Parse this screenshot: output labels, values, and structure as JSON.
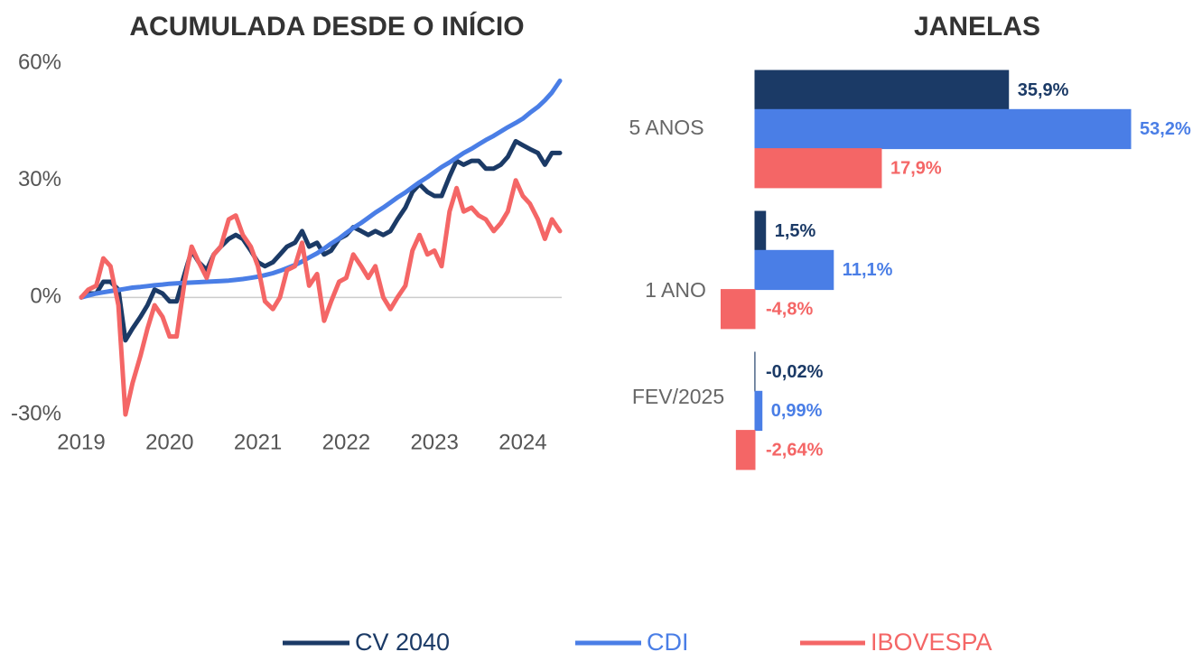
{
  "chart_data": [
    {
      "type": "line",
      "title": "ACUMULADA DESDE O INÍCIO",
      "x": [
        2019,
        2019.08,
        2019.17,
        2019.25,
        2019.33,
        2019.42,
        2019.5,
        2019.58,
        2019.67,
        2019.75,
        2019.83,
        2019.92,
        2020,
        2020.08,
        2020.17,
        2020.25,
        2020.33,
        2020.42,
        2020.5,
        2020.58,
        2020.67,
        2020.75,
        2020.83,
        2020.92,
        2021,
        2021.08,
        2021.17,
        2021.25,
        2021.33,
        2021.42,
        2021.5,
        2021.58,
        2021.67,
        2021.75,
        2021.83,
        2021.92,
        2022,
        2022.08,
        2022.17,
        2022.25,
        2022.33,
        2022.42,
        2022.5,
        2022.58,
        2022.67,
        2022.75,
        2022.83,
        2022.92,
        2023,
        2023.08,
        2023.17,
        2023.25,
        2023.33,
        2023.42,
        2023.5,
        2023.58,
        2023.67,
        2023.75,
        2023.83,
        2023.92,
        2024,
        2024.08,
        2024.17,
        2024.25,
        2024.33,
        2024.42
      ],
      "series": [
        {
          "name": "CV 2040",
          "color": "#1b3a66",
          "values": [
            0,
            1,
            1,
            4,
            4,
            2,
            -11,
            -8,
            -5,
            -2,
            2,
            1,
            -1,
            -1,
            6,
            12,
            9,
            7,
            11,
            13,
            15,
            16,
            15,
            12,
            9,
            8,
            9,
            11,
            13,
            14,
            17,
            13,
            14,
            11,
            12,
            15,
            16,
            18,
            17,
            16,
            17,
            16,
            17,
            20,
            23,
            27,
            29,
            27,
            26,
            26,
            31,
            35,
            34,
            35,
            35,
            33,
            33,
            34,
            36,
            40,
            39,
            38,
            37,
            34,
            37,
            37
          ]
        },
        {
          "name": "CDI",
          "color": "#4a7ee6",
          "values": [
            0,
            0.5,
            1,
            1.3,
            1.6,
            1.9,
            2.2,
            2.5,
            2.7,
            2.9,
            3.1,
            3.3,
            3.5,
            3.6,
            3.7,
            3.8,
            3.9,
            4,
            4.1,
            4.2,
            4.3,
            4.5,
            4.7,
            5,
            5.3,
            5.7,
            6.2,
            6.8,
            7.5,
            8.3,
            9.2,
            10.2,
            11.3,
            12.5,
            13.8,
            15.1,
            16.5,
            17.8,
            19.1,
            20.4,
            21.7,
            23,
            24.3,
            25.6,
            26.9,
            28.2,
            29.5,
            30.8,
            32.1,
            33.4,
            34.6,
            35.8,
            37,
            38.1,
            39.2,
            40.3,
            41.4,
            42.5,
            43.6,
            44.7,
            45.8,
            47.3,
            48.8,
            50.5,
            52.5,
            55.5
          ]
        },
        {
          "name": "IBOVESPA",
          "color": "#f46666",
          "values": [
            0,
            2,
            3,
            10,
            8,
            -2,
            -30,
            -22,
            -15,
            -8,
            -2,
            -5,
            -10,
            -10,
            4,
            13,
            9,
            5,
            11,
            13,
            20,
            21,
            16,
            13,
            8,
            -1,
            -3,
            0,
            7,
            8,
            14,
            3,
            6,
            -6,
            -1,
            4,
            5,
            11,
            8,
            5,
            8,
            0,
            -3,
            0,
            3,
            12,
            16,
            11,
            12,
            8,
            22,
            28,
            22,
            23,
            21,
            20,
            17,
            19,
            22,
            30,
            26,
            24,
            20,
            15,
            20,
            17
          ]
        }
      ],
      "xlim": [
        2019,
        2024.42
      ],
      "xticks": [
        2019,
        2020,
        2021,
        2022,
        2023,
        2024
      ],
      "ylim": [
        -30,
        60
      ],
      "yticks": [
        {
          "value": 60,
          "label": "60%"
        },
        {
          "value": 30,
          "label": "30%"
        },
        {
          "value": 0,
          "label": "0%"
        },
        {
          "value": -30,
          "label": "-30%"
        }
      ]
    },
    {
      "type": "bar",
      "orientation": "horizontal",
      "title": "JANELAS",
      "categories": [
        "5 ANOS",
        "1 ANO",
        "FEV/2025"
      ],
      "series": [
        {
          "color": "#1b3a66",
          "values": [
            35.9,
            1.5,
            -0.02
          ],
          "value_labels": [
            "35,9%",
            "1,5%",
            "-0,02%"
          ]
        },
        {
          "color": "#4a7ee6",
          "values": [
            53.2,
            11.1,
            0.99
          ],
          "value_labels": [
            "53,2%",
            "11,1%",
            "0,99%"
          ]
        },
        {
          "color": "#f46666",
          "values": [
            17.9,
            -4.8,
            -2.64
          ],
          "value_labels": [
            "17,9%",
            "-4,8%",
            "-2,64%"
          ]
        }
      ]
    }
  ]
}
